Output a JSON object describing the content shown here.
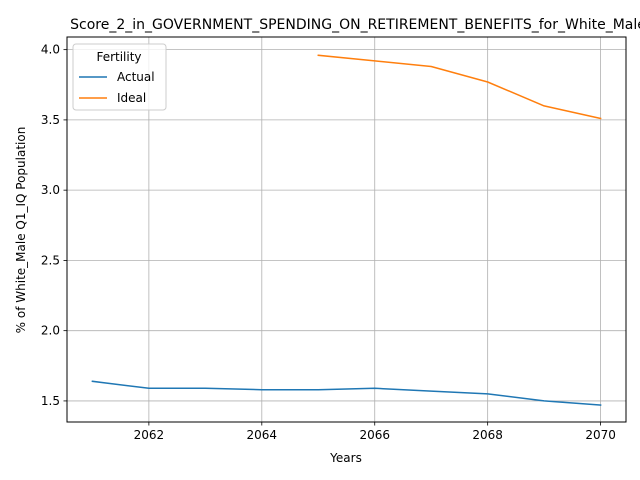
{
  "chart_data": {
    "type": "line",
    "title": "Score_2_in_GOVERNMENT_SPENDING_ON_RETIREMENT_BENEFITS_for_White_Male",
    "xlabel": "Years",
    "ylabel": "% of White_Male Q1_IQ Population",
    "xlim": [
      2060.55,
      2070.45
    ],
    "ylim": [
      1.35,
      4.09
    ],
    "xticks": [
      2062,
      2064,
      2066,
      2068,
      2070
    ],
    "yticks": [
      1.5,
      2.0,
      2.5,
      3.0,
      3.5,
      4.0
    ],
    "xtick_labels": [
      "2062",
      "2064",
      "2066",
      "2068",
      "2070"
    ],
    "ytick_labels": [
      "1.5",
      "2.0",
      "2.5",
      "3.0",
      "3.5",
      "4.0"
    ],
    "grid": true,
    "legend": {
      "title": "Fertility",
      "position": "top-left"
    },
    "series": [
      {
        "name": "Actual",
        "color": "#1f77b4",
        "x": [
          2061,
          2062,
          2063,
          2064,
          2065,
          2066,
          2067,
          2068,
          2069,
          2070
        ],
        "y": [
          1.64,
          1.59,
          1.59,
          1.58,
          1.58,
          1.59,
          1.57,
          1.55,
          1.5,
          1.47
        ]
      },
      {
        "name": "Ideal",
        "color": "#ff7f0e",
        "x": [
          2065,
          2066,
          2067,
          2068,
          2069,
          2070
        ],
        "y": [
          3.96,
          3.92,
          3.88,
          3.77,
          3.6,
          3.51
        ]
      }
    ]
  }
}
